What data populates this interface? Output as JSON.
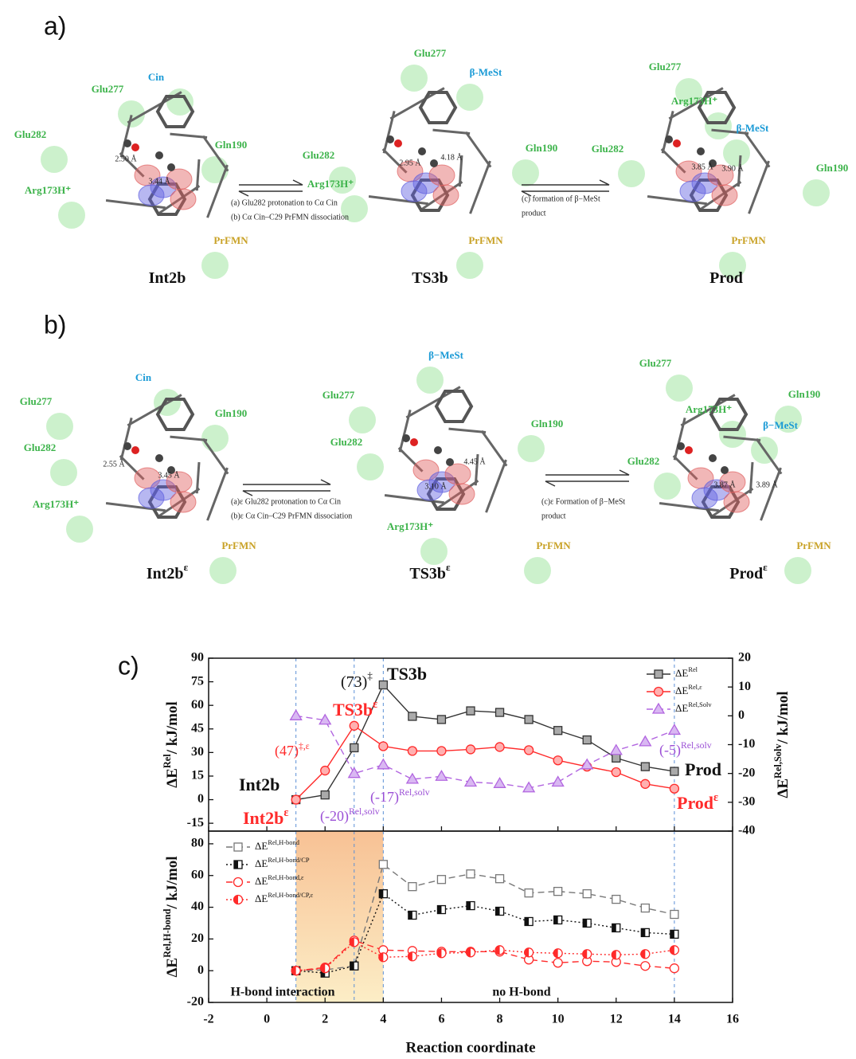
{
  "panels": [
    {
      "label": "a)",
      "structures": [
        {
          "title": {
            "text": "Int2b"
          },
          "labels": [
            {
              "text": "Glu277",
              "color": "#3cb34a"
            },
            {
              "text": "Cin",
              "color": "#1a9ad6"
            },
            {
              "text": "Glu282",
              "color": "#3cb34a"
            },
            {
              "text": "Gln190",
              "color": "#3cb34a"
            },
            {
              "text": "Arg173H⁺",
              "color": "#3cb34a"
            },
            {
              "text": "PrFMN",
              "color": "#c9a227"
            }
          ],
          "distances": [
            "2.50 Å",
            "3.44 Å"
          ]
        },
        {
          "title": {
            "text": "TS3b"
          },
          "labels": [
            {
              "text": "Glu277",
              "color": "#3cb34a"
            },
            {
              "text": "β-MeSt",
              "color": "#1a9ad6"
            },
            {
              "text": "Glu282",
              "color": "#3cb34a"
            },
            {
              "text": "Gln190",
              "color": "#3cb34a"
            },
            {
              "text": "Arg173H⁺",
              "color": "#3cb34a"
            },
            {
              "text": "PrFMN",
              "color": "#c9a227"
            }
          ],
          "distances": [
            "2.95 Å",
            "4.18 Å"
          ]
        },
        {
          "title": {
            "text": "Prod"
          },
          "labels": [
            {
              "text": "Glu277",
              "color": "#3cb34a"
            },
            {
              "text": "Arg173H⁺",
              "color": "#3cb34a"
            },
            {
              "text": "β-MeSt",
              "color": "#1a9ad6"
            },
            {
              "text": "Glu282",
              "color": "#3cb34a"
            },
            {
              "text": "Gln190",
              "color": "#3cb34a"
            },
            {
              "text": "PrFMN",
              "color": "#c9a227"
            }
          ],
          "distances": [
            "3.85 Å",
            "3.90 Å"
          ]
        }
      ],
      "captions": [
        [
          "(a) Glu282 protonation to Cα Cin",
          "(b) Cα Cin–C29 PrFMN dissociation"
        ],
        [
          "(c) formation of β−MeSt",
          "product"
        ]
      ]
    },
    {
      "label": "b)",
      "structures": [
        {
          "title": {
            "text": "Int2b",
            "sup": "ε"
          },
          "labels": [
            {
              "text": "Glu277",
              "color": "#3cb34a"
            },
            {
              "text": "Cin",
              "color": "#1a9ad6"
            },
            {
              "text": "Gln190",
              "color": "#3cb34a"
            },
            {
              "text": "Glu282",
              "color": "#3cb34a"
            },
            {
              "text": "Arg173H⁺",
              "color": "#3cb34a"
            },
            {
              "text": "PrFMN",
              "color": "#c9a227"
            }
          ],
          "distances": [
            "2.55 Å",
            "3.45 Å"
          ]
        },
        {
          "title": {
            "text": "TS3b",
            "sup": "ε"
          },
          "labels": [
            {
              "text": "β−MeSt",
              "color": "#1a9ad6"
            },
            {
              "text": "Glu277",
              "color": "#3cb34a"
            },
            {
              "text": "Gln190",
              "color": "#3cb34a"
            },
            {
              "text": "Glu282",
              "color": "#3cb34a"
            },
            {
              "text": "Arg173H⁺",
              "color": "#3cb34a"
            },
            {
              "text": "PrFMN",
              "color": "#c9a227"
            }
          ],
          "distances": [
            "3.10 Å",
            "4.45 Å"
          ]
        },
        {
          "title": {
            "text": "Prod",
            "sup": "ε"
          },
          "labels": [
            {
              "text": "Glu277",
              "color": "#3cb34a"
            },
            {
              "text": "Gln190",
              "color": "#3cb34a"
            },
            {
              "text": "Arg173H⁺",
              "color": "#3cb34a"
            },
            {
              "text": "β−MeSt",
              "color": "#1a9ad6"
            },
            {
              "text": "Glu282",
              "color": "#3cb34a"
            },
            {
              "text": "PrFMN",
              "color": "#c9a227"
            }
          ],
          "distances": [
            "3.87 Å",
            "3.89 Å"
          ]
        }
      ],
      "captions": [
        [
          "(a)ε Glu282 protonation to Cα Cin",
          "(b)ε Cα Cin–C29 PrFMN dissociation"
        ],
        [
          "(c)ε Formation of β−MeSt",
          "product"
        ]
      ]
    }
  ],
  "chart_label": "c)",
  "chart_data": [
    {
      "type": "line",
      "xlim": [
        -2,
        16
      ],
      "ylim": [
        -20,
        90
      ],
      "yticks": [
        -15,
        0,
        15,
        30,
        45,
        60,
        75,
        90
      ],
      "y2lim": [
        -40,
        20
      ],
      "y2ticks": [
        -40,
        -30,
        -20,
        -10,
        0,
        10,
        20
      ],
      "y_label": {
        "text": "ΔE",
        "sup": "Rel",
        "tail": "/ kJ/mol"
      },
      "y2_label": {
        "text": "ΔE",
        "sup": "Rel,Solv",
        "tail": "/ kJ/mol"
      },
      "legend": "upper right",
      "reference_lines": [
        1,
        3,
        4,
        14
      ],
      "x": [
        1,
        2,
        3,
        4,
        5,
        6,
        7,
        8,
        9,
        10,
        11,
        12,
        13,
        14
      ],
      "series": [
        {
          "name": "ΔE",
          "name_sup": "Rel",
          "color": "#333333",
          "marker": "square",
          "fill": "gray",
          "dash": "solid",
          "values": [
            0,
            3,
            33,
            73,
            53,
            51,
            56.5,
            55.5,
            51,
            44,
            38,
            26.5,
            21,
            18
          ]
        },
        {
          "name": "ΔE",
          "name_sup": "Rel,ε",
          "color": "#ff2a2a",
          "marker": "circle",
          "fill": "pink",
          "dash": "solid",
          "values": [
            0,
            18.5,
            47,
            34,
            31,
            31,
            32,
            33.5,
            31.5,
            25,
            21,
            17.5,
            10,
            7
          ]
        },
        {
          "name": "ΔE",
          "name_sup": "Rel,Solv",
          "color": "#b266e0",
          "marker": "triangle",
          "fill": "lavender",
          "dash": "dashed",
          "axis": "y2",
          "values": [
            0,
            -1.5,
            -20,
            -17,
            -22,
            -21,
            -23,
            -23.5,
            -25,
            -23,
            -17,
            -12,
            -9,
            -5
          ]
        }
      ],
      "annotations": [
        {
          "text": "(73)",
          "sup": "‡",
          "color": "#111111"
        },
        {
          "text": "TS3b",
          "color": "#111111"
        },
        {
          "text": "TS3b",
          "sup": "ε",
          "color": "#ff2a2a"
        },
        {
          "text": "(47)",
          "sup": "‡,ε",
          "color": "#ff2a2a"
        },
        {
          "text": "Int2b",
          "color": "#111111"
        },
        {
          "text": "Int2b",
          "sup": "ε",
          "color": "#ff2a2a"
        },
        {
          "text": "(-20)",
          "sup": "Rel,solv",
          "color": "#9b4fd6"
        },
        {
          "text": "(-17)",
          "sup": "Rel,solv",
          "color": "#9b4fd6"
        },
        {
          "text": "(-5)",
          "sup": "Rel,solv",
          "color": "#9b4fd6"
        },
        {
          "text": "Prod",
          "color": "#111111"
        },
        {
          "text": "Prod",
          "sup": "ε",
          "color": "#ff2a2a"
        }
      ]
    },
    {
      "type": "line",
      "xlim": [
        -2,
        16
      ],
      "ylim": [
        -20,
        88
      ],
      "yticks": [
        -20,
        0,
        20,
        40,
        60,
        80
      ],
      "xticks": [
        -2,
        0,
        2,
        4,
        6,
        8,
        10,
        12,
        14,
        16
      ],
      "x_label": "Reaction coordinate",
      "y_label": {
        "text": "ΔE",
        "sup": "Rel,H-bond",
        "tail": "/ kJ/mol"
      },
      "legend": "upper left",
      "reference_lines": [
        1,
        3,
        4,
        14
      ],
      "shaded_region": [
        1,
        4
      ],
      "region_labels": [
        "H-bond interaction",
        "no H-bond"
      ],
      "x": [
        1,
        2,
        3,
        4,
        5,
        6,
        7,
        8,
        9,
        10,
        11,
        12,
        13,
        14
      ],
      "series": [
        {
          "name": "ΔE",
          "name_sup": "Rel,H-bond",
          "color": "#777777",
          "marker": "square",
          "fill": "open",
          "dash": "dashed",
          "values": [
            0,
            0.5,
            3,
            67,
            53,
            57.5,
            61,
            58,
            49,
            50,
            48.5,
            45,
            39.5,
            35.5
          ]
        },
        {
          "name": "ΔE",
          "name_sup": "Rel,H-bond/CP",
          "color": "#111111",
          "marker": "square",
          "fill": "half",
          "dash": "dotted",
          "values": [
            0,
            -1.5,
            3,
            48.5,
            35,
            38.5,
            41,
            37.5,
            31,
            32,
            30,
            27,
            24,
            23
          ]
        },
        {
          "name": "ΔE",
          "name_sup": "Rel,H-bond,ε",
          "color": "#ff2a2a",
          "marker": "circle",
          "fill": "open",
          "dash": "dashed",
          "values": [
            0,
            2,
            19,
            13,
            12.5,
            12,
            12,
            12,
            7,
            5,
            6,
            5.5,
            3,
            1.5
          ]
        },
        {
          "name": "ΔE",
          "name_sup": "Rel,H-bond/CP,ε",
          "color": "#ff2a2a",
          "marker": "circle",
          "fill": "half",
          "dash": "dotted",
          "values": [
            0,
            1.5,
            18,
            8.5,
            9,
            11,
            11.5,
            13,
            11.5,
            11,
            10.5,
            10,
            10.5,
            13
          ]
        }
      ]
    }
  ]
}
